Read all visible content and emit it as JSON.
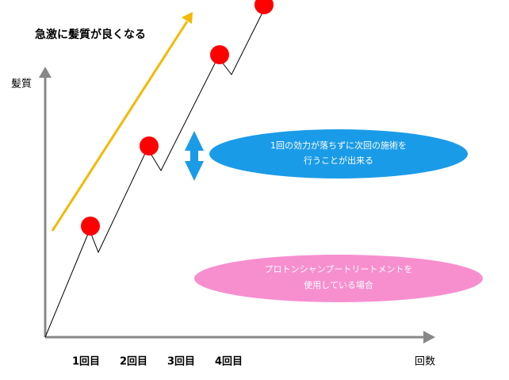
{
  "title": "急激に髪質が良くなる",
  "y_axis_label": "髪質",
  "x_axis_label": "回数",
  "x_labels": [
    "1回目",
    "2回目",
    "3回目",
    "4回目"
  ],
  "callouts": [
    {
      "lines": [
        "1回の効力が落ちずに次回の施術を",
        "行うことが出来る"
      ]
    },
    {
      "lines": [
        "プロトンシャンプートリートメントを",
        "使用している場合"
      ]
    }
  ]
}
